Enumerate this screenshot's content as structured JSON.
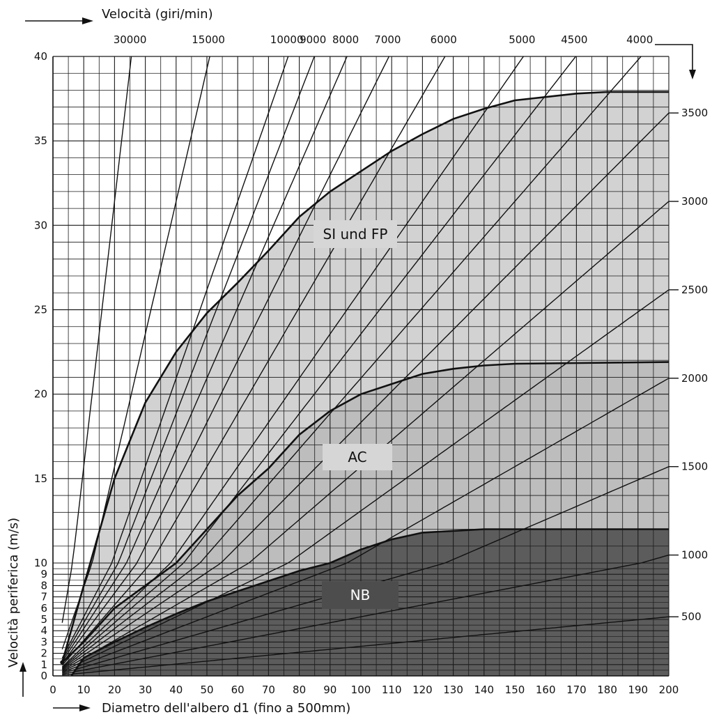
{
  "chart_data": {
    "type": "line",
    "top_axis_label": "Velocità (giri/min)",
    "xlabel": "Diametro dell'albero  d1 (fino a 500mm)",
    "ylabel": "Velocità periferica (m/s)",
    "xlim": [
      0,
      200
    ],
    "ylim": [
      0,
      40
    ],
    "y_scale": "piecewise: 1 m/s per step from 0 to 10, 5 m/s per step from 10 to 40",
    "x_ticks": [
      "0",
      "10",
      "20",
      "30",
      "40",
      "50",
      "60",
      "70",
      "80",
      "90",
      "100",
      "110",
      "120",
      "130",
      "140",
      "150",
      "160",
      "170",
      "180",
      "190",
      "200"
    ],
    "y_ticks": [
      "0",
      "1",
      "2",
      "3",
      "4",
      "5",
      "6",
      "7",
      "8",
      "9",
      "10",
      "15",
      "20",
      "25",
      "30",
      "35",
      "40"
    ],
    "rpm_top_labels": [
      "30000",
      "15000",
      "10000",
      "9000",
      "8000",
      "7000",
      "6000",
      "5000",
      "4500",
      "4000"
    ],
    "rpm_right_labels": [
      "3500",
      "3000",
      "2500",
      "2000",
      "1500",
      "1000",
      "500"
    ],
    "rpm_lines": [
      30000,
      15000,
      10000,
      9000,
      8000,
      7000,
      6000,
      5000,
      4500,
      4000,
      3500,
      3000,
      2500,
      2000,
      1500,
      1000,
      500
    ],
    "regions": [
      {
        "name": "SI und FP",
        "color": "#d2d2d2",
        "boundary": [
          [
            3,
            1.2
          ],
          [
            10,
            8
          ],
          [
            20,
            15
          ],
          [
            30,
            19.5
          ],
          [
            40,
            22.5
          ],
          [
            50,
            24.8
          ],
          [
            60,
            26.6
          ],
          [
            70,
            28.5
          ],
          [
            80,
            30.5
          ],
          [
            90,
            32
          ],
          [
            100,
            33.2
          ],
          [
            110,
            34.4
          ],
          [
            120,
            35.4
          ],
          [
            130,
            36.3
          ],
          [
            140,
            36.9
          ],
          [
            150,
            37.4
          ],
          [
            160,
            37.6
          ],
          [
            170,
            37.8
          ],
          [
            180,
            37.9
          ],
          [
            200,
            37.9
          ]
        ]
      },
      {
        "name": "AC",
        "color": "#bdbdbd",
        "boundary": [
          [
            3,
            1.2
          ],
          [
            10,
            3
          ],
          [
            20,
            6
          ],
          [
            30,
            8
          ],
          [
            40,
            10
          ],
          [
            50,
            12
          ],
          [
            60,
            14
          ],
          [
            70,
            15.6
          ],
          [
            80,
            17.6
          ],
          [
            90,
            19
          ],
          [
            100,
            20
          ],
          [
            110,
            20.6
          ],
          [
            120,
            21.2
          ],
          [
            130,
            21.5
          ],
          [
            140,
            21.7
          ],
          [
            150,
            21.8
          ],
          [
            200,
            21.9
          ]
        ]
      },
      {
        "name": "NB",
        "color": "#5c5c5c",
        "boundary": [
          [
            6,
            0
          ],
          [
            10,
            1.6
          ],
          [
            20,
            3
          ],
          [
            30,
            4.3
          ],
          [
            40,
            5.5
          ],
          [
            50,
            6.6
          ],
          [
            60,
            7.5
          ],
          [
            70,
            8.4
          ],
          [
            80,
            9.3
          ],
          [
            90,
            10
          ],
          [
            100,
            10.8
          ],
          [
            110,
            11.4
          ],
          [
            120,
            11.8
          ],
          [
            140,
            12
          ],
          [
            200,
            12
          ]
        ]
      }
    ]
  },
  "colors": {
    "grid": "#1a1a1a",
    "line": "#111111",
    "label_bg": "#d6d6d6",
    "nb_label_bg": "#4d4d4d",
    "nb_label_text": "#ffffff"
  }
}
